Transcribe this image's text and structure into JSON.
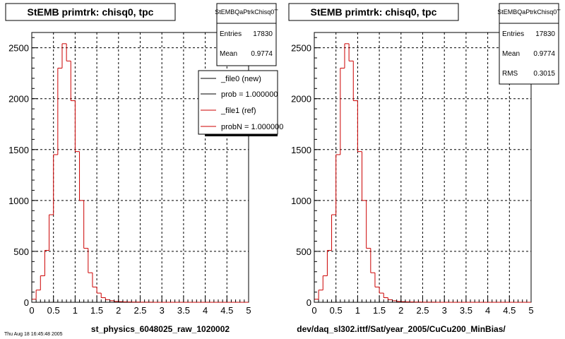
{
  "colors": {
    "new": "#000000",
    "ref": "#cc0000",
    "grid": "#000000",
    "frame": "#000000"
  },
  "footer": {
    "timestamp": "Thu Aug 18 16:45:48 2005"
  },
  "chart_data": [
    {
      "type": "histogram",
      "title": "StEMB primtrk: chisq0, tpc",
      "stats": {
        "name": "StEMBQaPtrkChisq0T",
        "entries_label": "Entries",
        "entries": "17830",
        "mean_label": "Mean",
        "mean": "0.9774"
      },
      "legend": [
        {
          "label": "_file0 (new)",
          "color": "#000000"
        },
        {
          "label": "prob = 1.000000",
          "color": "#000000"
        },
        {
          "label": "_file1 (ref)",
          "color": "#cc0000"
        },
        {
          "label": "probN = 1.000000",
          "color": "#cc0000"
        }
      ],
      "xlabel": "st_physics_6048025_raw_1020002",
      "xlim": [
        0,
        5
      ],
      "ylim": [
        0,
        2650
      ],
      "xticks": [
        "0",
        "0.5",
        "1",
        "1.5",
        "2",
        "2.5",
        "3",
        "3.5",
        "4",
        "4.5",
        "5"
      ],
      "yticks": [
        "0",
        "500",
        "1000",
        "1500",
        "2000",
        "2500"
      ],
      "bin_width": 0.1,
      "series": [
        {
          "name": "_file1 (ref)",
          "color": "#cc0000",
          "values": [
            30,
            120,
            260,
            510,
            860,
            1450,
            2300,
            2540,
            2370,
            1980,
            1480,
            1000,
            530,
            290,
            150,
            90,
            45,
            25,
            15,
            8,
            6,
            4,
            3,
            2,
            2,
            1,
            1,
            1,
            0,
            0,
            0,
            0,
            0,
            0,
            0,
            0,
            0,
            0,
            0,
            0,
            0,
            0,
            0,
            0,
            0,
            0,
            0,
            0,
            0,
            0
          ]
        }
      ]
    },
    {
      "type": "histogram",
      "title": "StEMB primtrk: chisq0, tpc",
      "stats": {
        "name": "StEMBQaPtrkChisq0T",
        "entries_label": "Entries",
        "entries": "17830",
        "mean_label": "Mean",
        "mean": "0.9774",
        "rms_label": "RMS",
        "rms": "0.3015"
      },
      "xlabel": "dev/daq_sl302.ittf/Sat/year_2005/CuCu200_MinBias/",
      "xlim": [
        0,
        5
      ],
      "ylim": [
        0,
        2650
      ],
      "xticks": [
        "0",
        "0.5",
        "1",
        "1.5",
        "2",
        "2.5",
        "3",
        "3.5",
        "4",
        "4.5",
        "5"
      ],
      "yticks": [
        "0",
        "500",
        "1000",
        "1500",
        "2000",
        "2500"
      ],
      "bin_width": 0.1,
      "series": [
        {
          "name": "",
          "color": "#cc0000",
          "values": [
            30,
            120,
            260,
            510,
            860,
            1450,
            2300,
            2540,
            2370,
            1980,
            1480,
            1000,
            530,
            290,
            150,
            90,
            45,
            25,
            15,
            8,
            6,
            4,
            3,
            2,
            2,
            1,
            1,
            1,
            0,
            0,
            0,
            0,
            0,
            0,
            0,
            0,
            0,
            0,
            0,
            0,
            0,
            0,
            0,
            0,
            0,
            0,
            0,
            0,
            0,
            0
          ]
        }
      ]
    }
  ]
}
